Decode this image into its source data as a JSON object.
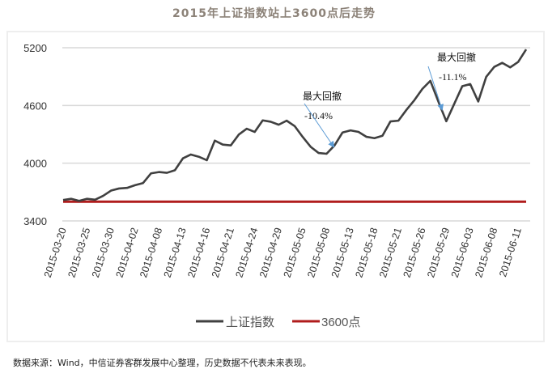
{
  "title": "2015年上证指数站上3600点后走势",
  "footer": "数据来源：Wind，中信证券客群发展中心整理，历史数据不代表未来表现。",
  "colors": {
    "index_line": "#404040",
    "ref_line": "#b01c1c",
    "arrow": "#5b9bd5",
    "grid": "#d9d9d9"
  },
  "chart_data": {
    "type": "line",
    "title": "2015年上证指数站上3600点后走势",
    "ylim": [
      3400,
      5200
    ],
    "yticks": [
      3400,
      4000,
      4600,
      5200
    ],
    "grid": true,
    "legend_position": "bottom",
    "x_tick_labels": [
      "2015-03-20",
      "2015-03-25",
      "2015-03-30",
      "2015-04-02",
      "2015-04-08",
      "2015-04-13",
      "2015-04-16",
      "2015-04-21",
      "2015-04-24",
      "2015-04-29",
      "2015-05-05",
      "2015-05-08",
      "2015-05-13",
      "2015-05-18",
      "2015-05-21",
      "2015-05-26",
      "2015-05-29",
      "2015-06-03",
      "2015-06-08",
      "2015-06-11"
    ],
    "series": [
      {
        "name": "上证指数",
        "values": [
          3617,
          3630,
          3608,
          3630,
          3620,
          3660,
          3715,
          3737,
          3743,
          3771,
          3793,
          3894,
          3908,
          3900,
          3927,
          4050,
          4090,
          4067,
          4031,
          4235,
          4193,
          4185,
          4297,
          4358,
          4325,
          4445,
          4431,
          4400,
          4442,
          4386,
          4274,
          4171,
          4106,
          4098,
          4185,
          4319,
          4341,
          4325,
          4274,
          4260,
          4285,
          4434,
          4442,
          4554,
          4655,
          4772,
          4856,
          4641,
          4436,
          4618,
          4800,
          4822,
          4641,
          4898,
          5001,
          5043,
          4996,
          5052,
          5183
        ]
      },
      {
        "name": "3600点",
        "value": 3600
      }
    ],
    "annotations": [
      {
        "label": "最大回撤",
        "value": "-10.4%"
      },
      {
        "label": "最大回撤",
        "value": "-11.1%"
      }
    ]
  }
}
